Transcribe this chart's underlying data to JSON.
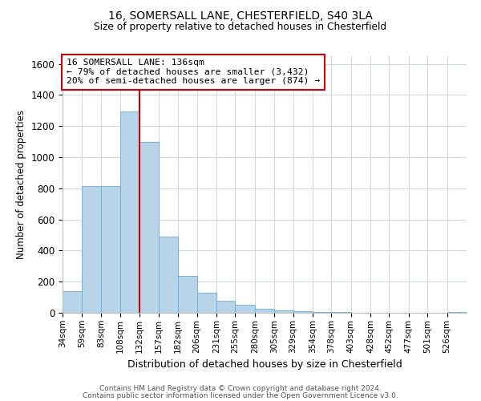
{
  "title1": "16, SOMERSALL LANE, CHESTERFIELD, S40 3LA",
  "title2": "Size of property relative to detached houses in Chesterfield",
  "xlabel": "Distribution of detached houses by size in Chesterfield",
  "ylabel": "Number of detached properties",
  "annotation_line1": "16 SOMERSALL LANE: 136sqm",
  "annotation_line2": "← 79% of detached houses are smaller (3,432)",
  "annotation_line3": "20% of semi-detached houses are larger (874) →",
  "bin_labels": [
    "34sqm",
    "59sqm",
    "83sqm",
    "108sqm",
    "132sqm",
    "157sqm",
    "182sqm",
    "206sqm",
    "231sqm",
    "255sqm",
    "280sqm",
    "305sqm",
    "329sqm",
    "354sqm",
    "378sqm",
    "403sqm",
    "428sqm",
    "452sqm",
    "477sqm",
    "501sqm",
    "526sqm"
  ],
  "bar_values": [
    140,
    815,
    815,
    1295,
    1100,
    490,
    235,
    130,
    75,
    50,
    28,
    18,
    10,
    5,
    3,
    2,
    1,
    1,
    1,
    1,
    5
  ],
  "bar_color": "#b8d4e8",
  "bar_edge_color": "#6aaed6",
  "vline_x_index": 4,
  "vline_color": "#cc0000",
  "ylim": [
    0,
    1650
  ],
  "yticks": [
    0,
    200,
    400,
    600,
    800,
    1000,
    1200,
    1400,
    1600
  ],
  "annotation_box_color": "#ffffff",
  "annotation_box_edge": "#cc0000",
  "footer1": "Contains HM Land Registry data © Crown copyright and database right 2024.",
  "footer2": "Contains public sector information licensed under the Open Government Licence v3.0.",
  "bg_color": "#ffffff",
  "grid_color": "#d0d8e0"
}
